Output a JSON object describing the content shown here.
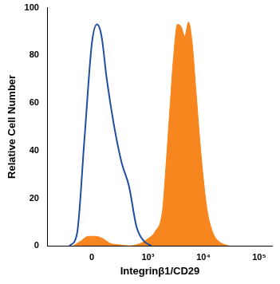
{
  "chart_data": {
    "type": "line",
    "x_label": "Integrinβ1/CD29",
    "y_label": "Relative Cell Number",
    "series": [
      {
        "type": "line",
        "color": "#1f4fa0",
        "x": [
          -212,
          -131,
          -62,
          0,
          43,
          82,
          131,
          212,
          312,
          442,
          616,
          846,
          1157
        ],
        "values": [
          0,
          5,
          45,
          85,
          93,
          88,
          70,
          50,
          35,
          25,
          8,
          2,
          0
        ]
      },
      {
        "type": "area",
        "color": "#f7861e",
        "x": [
          -169,
          -95,
          -31,
          31,
          95,
          169,
          260,
          442,
          722,
          1000,
          1352,
          1844,
          2150,
          2510,
          2928,
          3420,
          3980,
          4640,
          5410,
          6310,
          7360,
          8580,
          10000,
          11660,
          13600,
          15860,
          21560,
          29300
        ],
        "values": [
          0,
          2,
          4,
          4,
          3,
          1,
          0.5,
          0,
          1,
          3,
          6,
          15,
          35,
          58,
          80,
          93,
          92,
          88,
          94,
          85,
          65,
          45,
          28,
          15,
          8,
          4,
          1,
          0
        ]
      }
    ],
    "xlim": [
      -600,
      170000
    ],
    "xticks": [
      0,
      {
        "value": 1000,
        "label": "10³"
      },
      {
        "value": 10000,
        "label": "10⁴"
      },
      {
        "value": 100000,
        "label": "10⁵"
      }
    ],
    "ylim": [
      0,
      100
    ],
    "yticks": [
      0,
      20,
      40,
      60,
      80,
      100
    ],
    "grid": false
  }
}
